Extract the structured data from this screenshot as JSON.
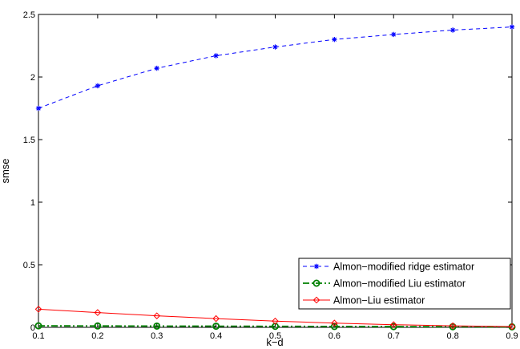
{
  "chart_data": {
    "type": "line",
    "title": "",
    "xlabel": "k−d",
    "ylabel": "smse",
    "xlim": [
      0.1,
      0.9
    ],
    "ylim": [
      0,
      2.5
    ],
    "x_ticks": [
      "0.1",
      "0.2",
      "0.3",
      "0.4",
      "0.5",
      "0.6",
      "0.7",
      "0.8",
      "0.9"
    ],
    "y_ticks": [
      "0",
      "0.5",
      "1",
      "1.5",
      "2",
      "2.5"
    ],
    "grid": false,
    "legend_position": "bottom-right",
    "x": [
      0.1,
      0.2,
      0.3,
      0.4,
      0.5,
      0.6,
      0.7,
      0.8,
      0.9
    ],
    "series": [
      {
        "name": "Almon−modified ridge estimator",
        "color": "#0000ff",
        "line_style": "dashed",
        "marker": "asterisk",
        "values": [
          1.75,
          1.93,
          2.07,
          2.17,
          2.24,
          2.3,
          2.34,
          2.375,
          2.4
        ]
      },
      {
        "name": "Almon−modified Liu estimator",
        "color": "#008000",
        "line_style": "dash-dot",
        "marker": "circle",
        "values": [
          0.012,
          0.011,
          0.01,
          0.009,
          0.008,
          0.007,
          0.006,
          0.005,
          0.004
        ]
      },
      {
        "name": "Almon−Liu estimator",
        "color": "#ff0000",
        "line_style": "solid",
        "marker": "diamond",
        "values": [
          0.145,
          0.118,
          0.092,
          0.07,
          0.05,
          0.034,
          0.021,
          0.012,
          0.006
        ]
      }
    ]
  }
}
